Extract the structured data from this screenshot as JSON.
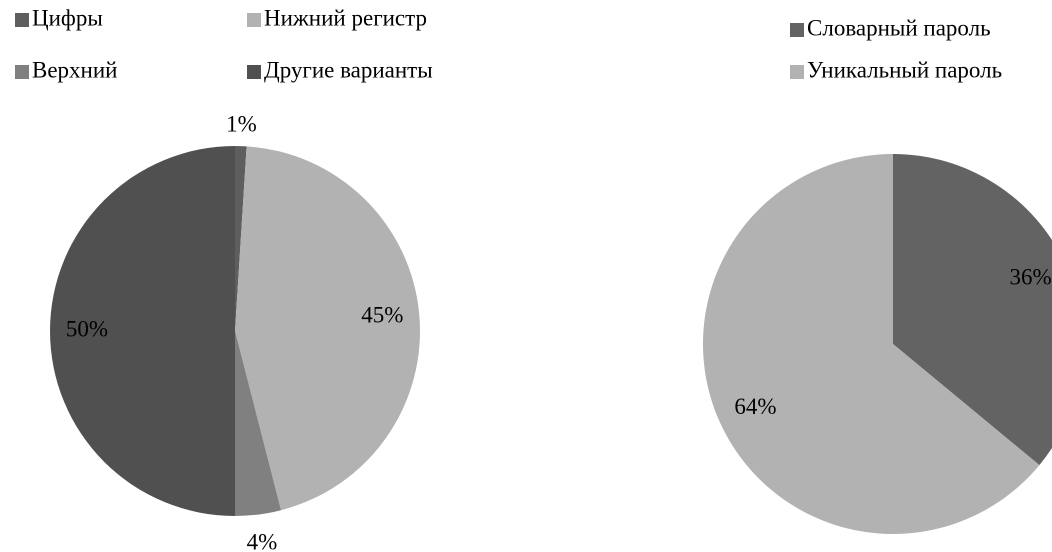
{
  "chart_data": [
    {
      "type": "pie",
      "categories": [
        "Цифры",
        "Нижний регистр",
        "Верхний",
        "Другие варианты"
      ],
      "values": [
        1,
        45,
        4,
        50
      ],
      "value_labels": [
        "1%",
        "45%",
        "4%",
        "50%"
      ],
      "colors": [
        "#5e5e5e",
        "#b2b2b2",
        "#808080",
        "#505050"
      ]
    },
    {
      "type": "pie",
      "categories": [
        "Словарный пароль",
        "Уникальный пароль"
      ],
      "values": [
        36,
        64
      ],
      "value_labels": [
        "36%",
        "64%"
      ],
      "colors": [
        "#636363",
        "#b2b2b2"
      ]
    }
  ]
}
